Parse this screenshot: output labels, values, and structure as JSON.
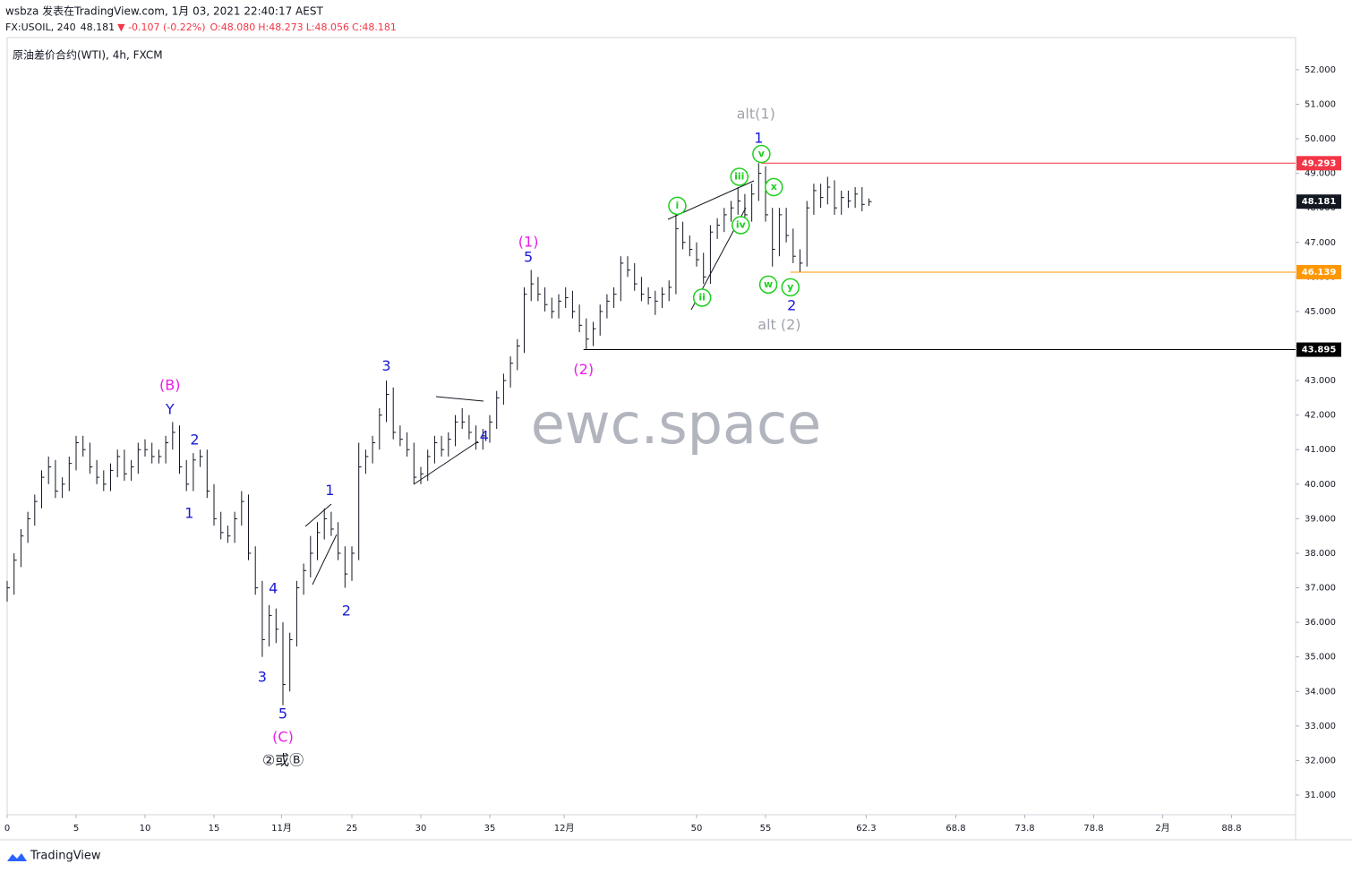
{
  "header": {
    "publisher": "wsbza 发表在TradingView.com, 1月 03, 2021 22:40:17 AEST",
    "symbol": "FX:USOIL, 240",
    "last": "48.181",
    "change": "▼ -0.107 (-0.22%)",
    "open": "O:48.080",
    "high": "H:48.273",
    "low": "L:48.056",
    "close": "C:48.181",
    "legend": "原油差价合约(WTI), 4h, FXCM"
  },
  "watermark": "ewc.space",
  "footer": "TradingView",
  "chart_data": {
    "type": "ohlc",
    "color": "#131722",
    "xlim": [
      0,
      93.44
    ],
    "ylim": [
      30.43,
      52.93
    ],
    "xticks": [
      0,
      5,
      10,
      15,
      {
        "value": 19.9,
        "label": "11月"
      },
      25,
      30,
      35,
      {
        "value": 40.4,
        "label": "12月"
      },
      50,
      55,
      62.3,
      68.8,
      73.8,
      78.8,
      {
        "value": 83.8,
        "label": "2月"
      },
      88.8
    ],
    "xtick_labels_override": null,
    "yticks": [
      {
        "value": 31,
        "label": "31.000"
      },
      {
        "value": 32,
        "label": "32.000"
      },
      {
        "value": 33,
        "label": "33.000"
      },
      {
        "value": 34,
        "label": "34.000"
      },
      {
        "value": 35,
        "label": "35.000"
      },
      {
        "value": 36,
        "label": "36.000"
      },
      {
        "value": 37,
        "label": "37.000"
      },
      {
        "value": 38,
        "label": "38.000"
      },
      {
        "value": 39,
        "label": "39.000"
      },
      {
        "value": 40,
        "label": "40.000"
      },
      {
        "value": 41,
        "label": "41.000"
      },
      {
        "value": 42,
        "label": "42.000"
      },
      {
        "value": 43,
        "label": "43.000"
      },
      {
        "value": 44,
        "label": "44.000"
      },
      {
        "value": 45,
        "label": "45.000"
      },
      {
        "value": 46,
        "label": "46.000"
      },
      {
        "value": 47,
        "label": "47.000"
      },
      {
        "value": 48,
        "label": "48.000"
      },
      {
        "value": 49,
        "label": "49.000"
      },
      {
        "value": 50,
        "label": "50.000"
      },
      {
        "value": 51,
        "label": "51.000"
      },
      {
        "value": 52,
        "label": "52.000"
      }
    ],
    "x": [
      0,
      0.5,
      1,
      1.5,
      2,
      2.5,
      3,
      3.5,
      4,
      4.5,
      5,
      5.5,
      6,
      6.5,
      7,
      7.5,
      8,
      8.5,
      9,
      9.5,
      10,
      10.5,
      11,
      11.5,
      12,
      12.5,
      13,
      13.5,
      14,
      14.5,
      15,
      15.5,
      16,
      16.5,
      17,
      17.5,
      18,
      18.5,
      19,
      19.5,
      20,
      20.5,
      21,
      21.5,
      22,
      22.5,
      23,
      23.5,
      24,
      24.5,
      25,
      25.5,
      26,
      26.5,
      27,
      27.5,
      28,
      28.5,
      29,
      29.5,
      30,
      30.5,
      31,
      31.5,
      32,
      32.5,
      33,
      33.5,
      34,
      34.5,
      35,
      35.5,
      36,
      36.5,
      37,
      37.5,
      38,
      38.5,
      39,
      39.5,
      40,
      40.5,
      41,
      41.5,
      42,
      42.5,
      43,
      43.5,
      44,
      44.5,
      45,
      45.5,
      46,
      46.5,
      47,
      47.5,
      48,
      48.5,
      49,
      49.5,
      50,
      50.5,
      51,
      51.5,
      52,
      52.5,
      53,
      53.5,
      54,
      54.5,
      55,
      55.5,
      56,
      56.5,
      57,
      57.5,
      58,
      58.5,
      59,
      59.5,
      60,
      60.5,
      61,
      61.5,
      62,
      62.5
    ],
    "high": [
      37.2,
      38.0,
      38.7,
      39.2,
      39.7,
      40.4,
      40.8,
      40.7,
      40.2,
      40.8,
      41.4,
      41.4,
      41.2,
      40.7,
      40.4,
      40.6,
      41.0,
      41.0,
      40.7,
      41.2,
      41.3,
      41.2,
      41.0,
      41.4,
      41.8,
      41.7,
      40.7,
      40.9,
      41.0,
      41.0,
      40.0,
      39.2,
      38.8,
      39.2,
      39.8,
      39.7,
      38.2,
      37.2,
      36.5,
      36.4,
      36.0,
      35.7,
      37.2,
      37.7,
      38.5,
      38.9,
      39.3,
      39.2,
      38.9,
      38.2,
      38.2,
      41.2,
      41.0,
      41.4,
      42.2,
      43.0,
      42.8,
      41.7,
      41.5,
      41.2,
      40.5,
      41.0,
      41.4,
      41.4,
      41.5,
      42.0,
      42.2,
      42.0,
      41.7,
      41.6,
      42.0,
      42.7,
      43.2,
      43.7,
      44.2,
      45.7,
      46.2,
      46.0,
      45.7,
      45.4,
      45.5,
      45.7,
      45.6,
      45.2,
      44.8,
      44.7,
      45.2,
      45.5,
      45.7,
      46.6,
      46.6,
      46.4,
      46.0,
      45.7,
      45.6,
      45.7,
      45.9,
      47.8,
      47.6,
      47.2,
      47.0,
      46.7,
      47.5,
      47.7,
      48.0,
      48.2,
      48.6,
      48.4,
      48.7,
      49.293,
      49.2,
      48.0,
      48.0,
      48.0,
      47.4,
      46.8,
      48.2,
      48.7,
      48.7,
      48.9,
      48.8,
      48.5,
      48.5,
      48.6,
      48.6,
      48.273
    ],
    "low": [
      36.6,
      36.8,
      37.6,
      38.3,
      38.8,
      39.3,
      40.0,
      39.6,
      39.6,
      39.8,
      40.4,
      40.8,
      40.3,
      40.0,
      39.8,
      39.8,
      40.2,
      40.1,
      40.1,
      40.3,
      40.8,
      40.6,
      40.6,
      40.6,
      41.0,
      40.3,
      39.8,
      39.8,
      40.5,
      39.6,
      38.8,
      38.4,
      38.3,
      38.3,
      38.8,
      37.8,
      36.8,
      35.0,
      35.3,
      35.4,
      33.6,
      34.0,
      35.3,
      36.8,
      37.3,
      37.8,
      38.4,
      38.5,
      37.8,
      37.0,
      37.2,
      37.8,
      40.3,
      40.6,
      41.0,
      41.8,
      41.3,
      41.1,
      40.8,
      40.0,
      40.0,
      40.1,
      40.6,
      40.8,
      40.8,
      41.1,
      41.6,
      41.3,
      41.0,
      41.0,
      41.2,
      41.6,
      42.3,
      42.8,
      43.3,
      43.8,
      45.3,
      45.3,
      45.0,
      44.8,
      44.8,
      45.1,
      44.8,
      44.4,
      43.9,
      44.0,
      44.3,
      44.8,
      45.1,
      45.3,
      46.0,
      45.6,
      45.3,
      45.2,
      44.9,
      45.1,
      45.3,
      45.5,
      46.8,
      46.6,
      46.3,
      45.8,
      45.8,
      47.1,
      47.3,
      47.6,
      47.8,
      47.6,
      47.6,
      48.2,
      47.6,
      46.3,
      46.6,
      47.0,
      46.4,
      46.139,
      46.3,
      47.8,
      48.0,
      48.1,
      47.8,
      47.8,
      48.0,
      48.0,
      47.9,
      48.056
    ],
    "close": [
      37.0,
      37.8,
      38.5,
      39.0,
      39.5,
      40.2,
      40.5,
      39.8,
      40.0,
      40.6,
      41.2,
      41.0,
      40.5,
      40.2,
      40.0,
      40.4,
      40.8,
      40.3,
      40.5,
      41.0,
      41.0,
      40.8,
      40.8,
      41.2,
      41.5,
      40.5,
      40.0,
      40.7,
      40.8,
      39.8,
      39.0,
      38.6,
      38.5,
      39.0,
      39.5,
      38.0,
      37.0,
      35.5,
      36.2,
      35.8,
      34.2,
      35.5,
      37.0,
      37.5,
      38.0,
      38.6,
      39.0,
      38.7,
      38.0,
      37.4,
      38.0,
      40.5,
      40.8,
      41.2,
      42.0,
      42.6,
      41.5,
      41.3,
      41.0,
      40.2,
      40.3,
      40.8,
      41.2,
      41.0,
      41.3,
      41.8,
      41.8,
      41.5,
      41.2,
      41.4,
      41.8,
      42.5,
      43.0,
      43.5,
      44.0,
      45.5,
      45.8,
      45.5,
      45.2,
      45.0,
      45.3,
      45.4,
      45.0,
      44.6,
      44.2,
      44.5,
      45.0,
      45.3,
      45.5,
      46.4,
      46.2,
      45.8,
      45.5,
      45.4,
      45.3,
      45.5,
      45.7,
      47.4,
      47.0,
      46.8,
      46.5,
      46.0,
      47.3,
      47.5,
      47.8,
      48.0,
      48.2,
      47.8,
      48.4,
      49.0,
      47.8,
      46.8,
      47.8,
      47.2,
      46.6,
      46.4,
      48.0,
      48.5,
      48.3,
      48.6,
      48.0,
      48.3,
      48.2,
      48.4,
      48.1,
      48.181
    ],
    "levels": [
      {
        "value": 49.293,
        "label": "49.293",
        "color": "#f23645",
        "start": 54.7
      },
      {
        "value": 48.181,
        "label": "48.181",
        "color": "#131722"
      },
      {
        "value": 46.139,
        "label": "46.139",
        "color": "#ff9800",
        "start": 56.8
      },
      {
        "value": 43.895,
        "label": "43.895",
        "color": "#000000",
        "start": 41.8
      }
    ],
    "annotations": [
      {
        "text": "alt(1)",
        "x": 54.3,
        "y": 50.7,
        "color": "#a0a3ab"
      },
      {
        "text": "1",
        "x": 54.5,
        "y": 50.0,
        "color": "#1a1ad6"
      },
      {
        "text": "v",
        "x": 54.7,
        "y": 49.56,
        "color": "#1ecf1e",
        "circle": true
      },
      {
        "text": "iii",
        "x": 53.1,
        "y": 48.9,
        "color": "#1ecf1e",
        "circle": true
      },
      {
        "text": "x",
        "x": 55.6,
        "y": 48.6,
        "color": "#1ecf1e",
        "circle": true
      },
      {
        "text": "i",
        "x": 48.6,
        "y": 48.06,
        "color": "#1ecf1e",
        "circle": true
      },
      {
        "text": "iv",
        "x": 53.2,
        "y": 47.5,
        "color": "#1ecf1e",
        "circle": true
      },
      {
        "text": "(1)",
        "x": 37.8,
        "y": 47.0,
        "color": "#e81ee8"
      },
      {
        "text": "5",
        "x": 37.8,
        "y": 46.55,
        "color": "#1a1ad6"
      },
      {
        "text": "w",
        "x": 55.2,
        "y": 45.78,
        "color": "#1ecf1e",
        "circle": true
      },
      {
        "text": "y",
        "x": 56.8,
        "y": 45.7,
        "color": "#1ecf1e",
        "circle": true
      },
      {
        "text": "ii",
        "x": 50.4,
        "y": 45.4,
        "color": "#1ecf1e",
        "circle": true
      },
      {
        "text": "2",
        "x": 56.9,
        "y": 45.15,
        "color": "#1a1ad6"
      },
      {
        "text": "alt (2)",
        "x": 56.0,
        "y": 44.6,
        "color": "#a0a3ab"
      },
      {
        "text": "(2)",
        "x": 41.8,
        "y": 43.3,
        "color": "#e81ee8"
      },
      {
        "text": "3",
        "x": 27.5,
        "y": 43.4,
        "color": "#1a1ad6"
      },
      {
        "text": "(B)",
        "x": 11.8,
        "y": 42.85,
        "color": "#e81ee8"
      },
      {
        "text": "Y",
        "x": 11.8,
        "y": 42.15,
        "color": "#1a1ad6"
      },
      {
        "text": "4",
        "x": 34.6,
        "y": 41.37,
        "color": "#1a1ad6"
      },
      {
        "text": "2",
        "x": 13.6,
        "y": 41.27,
        "color": "#1a1ad6"
      },
      {
        "text": "1",
        "x": 23.4,
        "y": 39.8,
        "color": "#1a1ad6"
      },
      {
        "text": "1",
        "x": 13.2,
        "y": 39.14,
        "color": "#1a1ad6"
      },
      {
        "text": "4",
        "x": 19.3,
        "y": 36.96,
        "color": "#1a1ad6"
      },
      {
        "text": "2",
        "x": 24.6,
        "y": 36.31,
        "color": "#1a1ad6"
      },
      {
        "text": "3",
        "x": 18.5,
        "y": 34.4,
        "color": "#1a1ad6"
      },
      {
        "text": "5",
        "x": 20.0,
        "y": 33.33,
        "color": "#1a1ad6"
      },
      {
        "text": "(C)",
        "x": 20.0,
        "y": 32.66,
        "color": "#e81ee8"
      },
      {
        "text": "②或Ⓑ",
        "x": 20.0,
        "y": 31.98,
        "color": "#131722"
      }
    ]
  }
}
